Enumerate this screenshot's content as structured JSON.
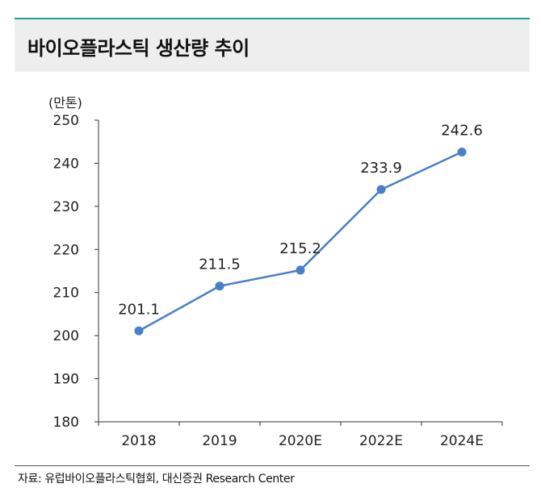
{
  "header": {
    "title": "바이오플라스틱 생산량 추이"
  },
  "footer": {
    "source": "자료: 유럽바이오플라스틱협회, 대신증권 Research Center"
  },
  "chart_data": {
    "type": "line",
    "title": "바이오플라스틱 생산량 추이",
    "ylabel": "(만톤)",
    "xlabel": "",
    "categories": [
      "2018",
      "2019",
      "2020E",
      "2022E",
      "2024E"
    ],
    "series": [
      {
        "name": "바이오플라스틱 생산량",
        "values": [
          201.1,
          211.5,
          215.2,
          233.9,
          242.6
        ]
      }
    ],
    "data_labels": [
      "201.1",
      "211.5",
      "215.2",
      "233.9",
      "242.6"
    ],
    "ylim": [
      180,
      250
    ],
    "yticks": [
      180,
      190,
      200,
      210,
      220,
      230,
      240,
      250
    ],
    "grid": false,
    "line_color": "#4a7fc7"
  }
}
